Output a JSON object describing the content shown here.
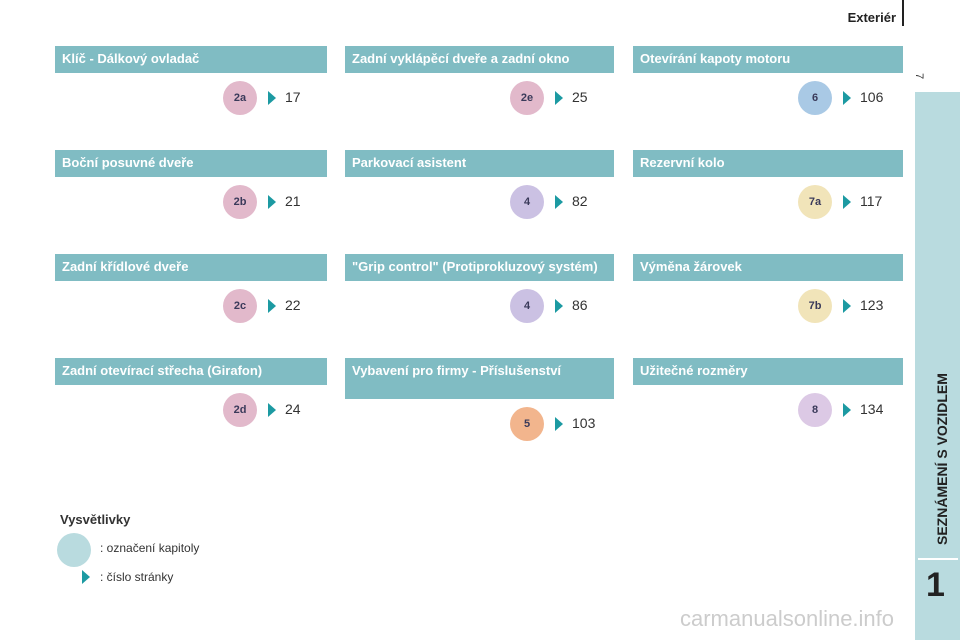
{
  "header": {
    "title": "Exteriér",
    "page_number": "7"
  },
  "sidebar": {
    "section": "SEZNÁMENÍ S VOZIDLEM",
    "chapter": "1"
  },
  "columns": [
    {
      "items": [
        {
          "title": "Klíč - Dálkový ovladač",
          "badge": "2a",
          "page": "17",
          "color": "#e2b9cb"
        },
        {
          "title": "Boční posuvné dveře",
          "badge": "2b",
          "page": "21",
          "color": "#e2b9cb"
        },
        {
          "title": "Zadní křídlové dveře",
          "badge": "2c",
          "page": "22",
          "color": "#e2b9cb"
        },
        {
          "title": "Zadní otevírací střecha (Girafon)",
          "badge": "2d",
          "page": "24",
          "color": "#e2b9cb"
        }
      ]
    },
    {
      "items": [
        {
          "title": "Zadní vyklápěcí dveře a zadní okno",
          "badge": "2e",
          "page": "25",
          "color": "#e2b9cb"
        },
        {
          "title": "Parkovací asistent",
          "badge": "4",
          "page": "82",
          "color": "#cbc1e3"
        },
        {
          "title": "\"Grip control\" (Protiprokluzový systém)",
          "badge": "4",
          "page": "86",
          "color": "#cbc1e3"
        },
        {
          "title": "Vybavení pro firmy - Příslušenství",
          "badge": "5",
          "page": "103",
          "color": "#f2b58d"
        }
      ]
    },
    {
      "items": [
        {
          "title": "Otevírání kapoty motoru",
          "badge": "6",
          "page": "106",
          "color": "#a9c9e5"
        },
        {
          "title": "Rezervní kolo",
          "badge": "7a",
          "page": "117",
          "color": "#f1e4b9"
        },
        {
          "title": "Výměna žárovek",
          "badge": "7b",
          "page": "123",
          "color": "#f1e4b9"
        },
        {
          "title": "Užitečné rozměry",
          "badge": "8",
          "page": "134",
          "color": "#dcc9e5"
        }
      ]
    }
  ],
  "legend": {
    "title": "Vysvětlivky",
    "badge_text": ": označení kapitoly",
    "arrow_text": ": číslo stránky"
  },
  "watermark": "carmanualsonline.info"
}
